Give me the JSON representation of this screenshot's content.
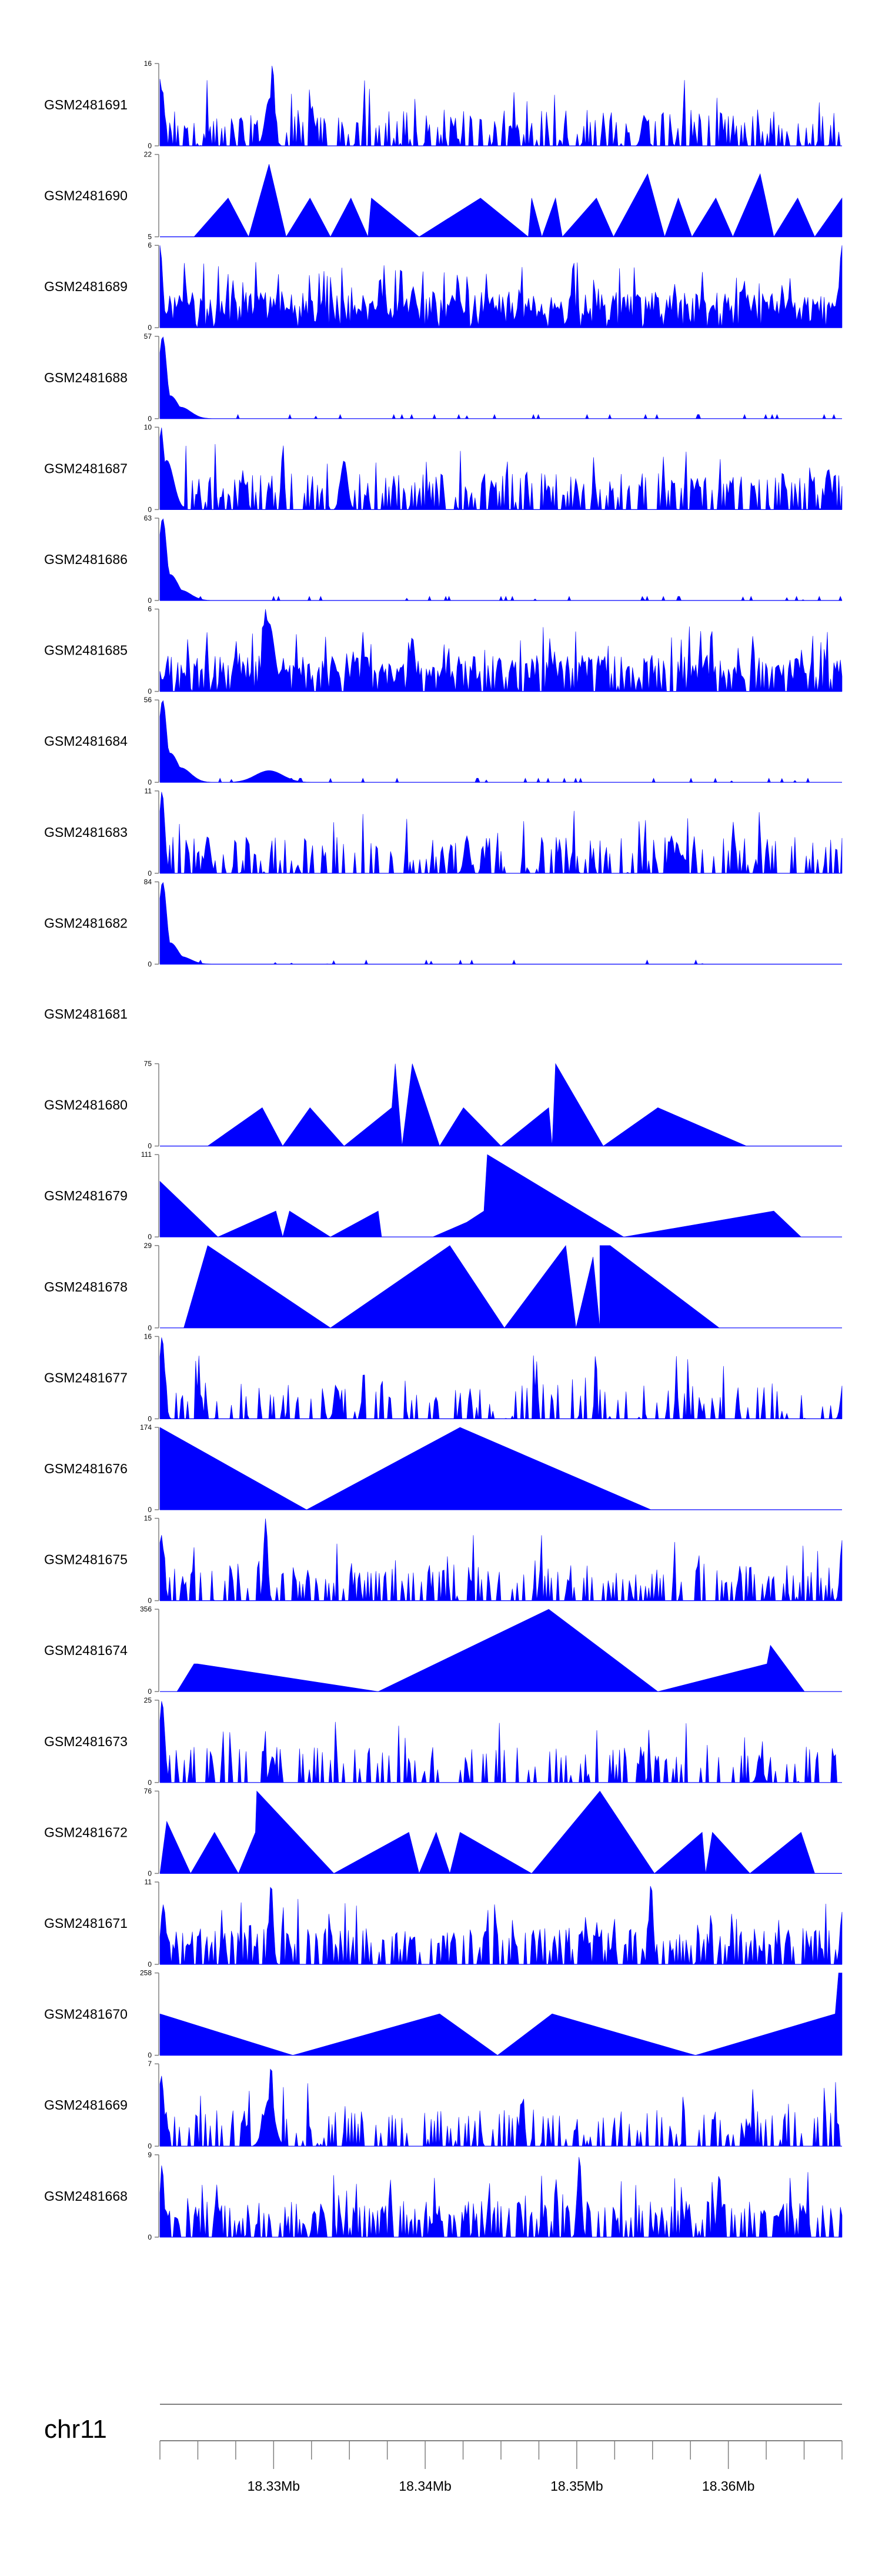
{
  "chart_data": {
    "type": "area",
    "title": "",
    "chromosome": "chr11",
    "xlim": [
      18.3225,
      18.3675
    ],
    "genome_ticks": [
      18.33,
      18.34,
      18.35,
      18.36
    ],
    "genome_tick_labels": [
      "18.33Mb",
      "18.34Mb",
      "18.35Mb",
      "18.36Mb"
    ],
    "fill_color": "#0000ff",
    "text_color": "#000000",
    "axis_color": "#808080",
    "tracks": [
      {
        "name": "GSM2481691",
        "ymin": 0,
        "ymax": 16,
        "kind": "dense",
        "seed": 11,
        "base": 0.1,
        "spike": 0.4,
        "peaks": [
          [
            0.0,
            13,
            0.004
          ],
          [
            0.165,
            16,
            0.003
          ],
          [
            0.16,
            9,
            0.006
          ],
          [
            0.71,
            6,
            0.004
          ]
        ]
      },
      {
        "name": "GSM2481690",
        "ymin": 5,
        "ymax": 22,
        "kind": "tri",
        "points": [
          [
            0.05,
            5
          ],
          [
            0.1,
            13
          ],
          [
            0.13,
            5
          ],
          [
            0.16,
            20
          ],
          [
            0.185,
            5
          ],
          [
            0.22,
            13
          ],
          [
            0.25,
            5
          ],
          [
            0.28,
            13
          ],
          [
            0.305,
            5
          ],
          [
            0.31,
            13
          ],
          [
            0.38,
            5
          ],
          [
            0.47,
            13
          ],
          [
            0.54,
            5
          ],
          [
            0.545,
            13
          ],
          [
            0.56,
            5
          ],
          [
            0.58,
            13
          ],
          [
            0.59,
            5
          ],
          [
            0.64,
            13
          ],
          [
            0.665,
            5
          ],
          [
            0.715,
            18
          ],
          [
            0.74,
            5
          ],
          [
            0.76,
            13
          ],
          [
            0.78,
            5
          ],
          [
            0.815,
            13
          ],
          [
            0.84,
            5
          ],
          [
            0.88,
            18
          ],
          [
            0.9,
            5
          ],
          [
            0.935,
            13
          ],
          [
            0.96,
            5
          ],
          [
            1.0,
            13
          ]
        ]
      },
      {
        "name": "GSM2481689",
        "ymin": 0,
        "ymax": 6,
        "kind": "dense",
        "seed": 23,
        "base": 0.1,
        "spike": 0.85,
        "peaks": [
          [
            0.0,
            6,
            0.004
          ],
          [
            1.0,
            6,
            0.004
          ]
        ]
      },
      {
        "name": "GSM2481688",
        "ymin": 0,
        "ymax": 57,
        "kind": "decay",
        "seed": 34,
        "base": 0.05,
        "spike": 0.02,
        "peaks": [
          [
            0.004,
            57,
            0.006
          ],
          [
            0.015,
            16,
            0.012
          ],
          [
            0.03,
            8,
            0.015
          ]
        ]
      },
      {
        "name": "GSM2481687",
        "ymin": 0,
        "ymax": 10,
        "kind": "dense",
        "seed": 45,
        "base": 0.05,
        "spike": 0.45,
        "peaks": [
          [
            0.002,
            10,
            0.004
          ],
          [
            0.01,
            6,
            0.01
          ],
          [
            0.27,
            6,
            0.005
          ],
          [
            0.98,
            5,
            0.004
          ]
        ]
      },
      {
        "name": "GSM2481686",
        "ymin": 0,
        "ymax": 63,
        "kind": "decay",
        "seed": 56,
        "base": 0.04,
        "spike": 0.02,
        "peaks": [
          [
            0.004,
            63,
            0.006
          ],
          [
            0.015,
            20,
            0.012
          ],
          [
            0.03,
            8,
            0.015
          ]
        ]
      },
      {
        "name": "GSM2481685",
        "ymin": 0,
        "ymax": 6,
        "kind": "dense",
        "seed": 67,
        "base": 0.05,
        "spike": 0.75,
        "peaks": [
          [
            0.155,
            6,
            0.004
          ],
          [
            0.16,
            5,
            0.008
          ],
          [
            0.37,
            4,
            0.004
          ]
        ]
      },
      {
        "name": "GSM2481684",
        "ymin": 0,
        "ymax": 56,
        "kind": "decay",
        "seed": 78,
        "base": 0.03,
        "spike": 0.04,
        "peaks": [
          [
            0.004,
            56,
            0.006
          ],
          [
            0.015,
            20,
            0.012
          ],
          [
            0.03,
            10,
            0.015
          ],
          [
            0.16,
            8,
            0.02
          ]
        ]
      },
      {
        "name": "GSM2481683",
        "ymin": 0,
        "ymax": 11,
        "kind": "dense",
        "seed": 89,
        "base": 0.05,
        "spike": 0.4,
        "peaks": [
          [
            0.003,
            11,
            0.004
          ],
          [
            0.07,
            5,
            0.004
          ],
          [
            0.45,
            5,
            0.004
          ],
          [
            0.75,
            5,
            0.004
          ]
        ]
      },
      {
        "name": "GSM2481682",
        "ymin": 0,
        "ymax": 84,
        "kind": "decay",
        "seed": 90,
        "base": 0.03,
        "spike": 0.02,
        "peaks": [
          [
            0.004,
            84,
            0.006
          ],
          [
            0.015,
            22,
            0.012
          ],
          [
            0.03,
            8,
            0.015
          ]
        ]
      },
      {
        "name": "GSM2481681",
        "kind": "empty"
      },
      {
        "name": "GSM2481680",
        "ymin": 0,
        "ymax": 75,
        "kind": "tri",
        "points": [
          [
            0.07,
            0
          ],
          [
            0.15,
            35
          ],
          [
            0.18,
            0
          ],
          [
            0.22,
            35
          ],
          [
            0.27,
            0
          ],
          [
            0.34,
            35
          ],
          [
            0.345,
            75
          ],
          [
            0.355,
            0
          ],
          [
            0.37,
            75
          ],
          [
            0.41,
            0
          ],
          [
            0.445,
            35
          ],
          [
            0.5,
            0
          ],
          [
            0.57,
            35
          ],
          [
            0.575,
            0
          ],
          [
            0.58,
            75
          ],
          [
            0.65,
            0
          ],
          [
            0.73,
            35
          ],
          [
            0.86,
            0
          ]
        ]
      },
      {
        "name": "GSM2481679",
        "ymin": 0,
        "ymax": 111,
        "kind": "tri",
        "points": [
          [
            0.0,
            0
          ],
          [
            0.0,
            75
          ],
          [
            0.085,
            0
          ],
          [
            0.17,
            35
          ],
          [
            0.18,
            0
          ],
          [
            0.19,
            35
          ],
          [
            0.25,
            0
          ],
          [
            0.32,
            35
          ],
          [
            0.325,
            0
          ],
          [
            0.4,
            0
          ],
          [
            0.45,
            20
          ],
          [
            0.475,
            35
          ],
          [
            0.48,
            111
          ],
          [
            0.68,
            0
          ],
          [
            0.9,
            35
          ],
          [
            0.94,
            0
          ]
        ]
      },
      {
        "name": "GSM2481678",
        "ymin": 0,
        "ymax": 29,
        "kind": "tri",
        "points": [
          [
            0.035,
            0
          ],
          [
            0.07,
            29
          ],
          [
            0.25,
            0
          ],
          [
            0.425,
            29
          ],
          [
            0.505,
            0
          ],
          [
            0.595,
            29
          ],
          [
            0.61,
            0
          ],
          [
            0.635,
            25
          ],
          [
            0.645,
            0
          ],
          [
            0.645,
            29
          ],
          [
            0.66,
            29
          ],
          [
            0.82,
            0
          ]
        ]
      },
      {
        "name": "GSM2481677",
        "ymin": 0,
        "ymax": 16,
        "kind": "dense",
        "seed": 101,
        "base": 0.04,
        "spike": 0.25,
        "peaks": [
          [
            0.003,
            16,
            0.004
          ],
          [
            0.26,
            6,
            0.004
          ],
          [
            1.0,
            5,
            0.003
          ]
        ]
      },
      {
        "name": "GSM2481676",
        "ymin": 0,
        "ymax": 174,
        "kind": "tri",
        "points": [
          [
            0.0,
            0
          ],
          [
            0.0,
            174
          ],
          [
            0.215,
            0
          ],
          [
            0.44,
            174
          ],
          [
            0.72,
            0
          ]
        ]
      },
      {
        "name": "GSM2481675",
        "ymin": 0,
        "ymax": 15,
        "kind": "dense",
        "seed": 112,
        "base": 0.03,
        "spike": 0.4,
        "peaks": [
          [
            0.002,
            12,
            0.004
          ],
          [
            0.155,
            15,
            0.003
          ],
          [
            1.0,
            11,
            0.003
          ]
        ]
      },
      {
        "name": "GSM2481674",
        "ymin": 0,
        "ymax": 356,
        "kind": "tri",
        "points": [
          [
            0.025,
            0
          ],
          [
            0.05,
            120
          ],
          [
            0.055,
            120
          ],
          [
            0.32,
            0
          ],
          [
            0.57,
            356
          ],
          [
            0.73,
            0
          ],
          [
            0.89,
            120
          ],
          [
            0.895,
            200
          ],
          [
            0.945,
            0
          ]
        ]
      },
      {
        "name": "GSM2481673",
        "ymin": 0,
        "ymax": 25,
        "kind": "dense",
        "seed": 123,
        "base": 0.02,
        "spike": 0.25,
        "peaks": [
          [
            0.003,
            25,
            0.004
          ],
          [
            0.165,
            8,
            0.004
          ],
          [
            0.88,
            7,
            0.004
          ]
        ]
      },
      {
        "name": "GSM2481672",
        "ymin": 0,
        "ymax": 76,
        "kind": "tri",
        "points": [
          [
            0.0,
            0
          ],
          [
            0.01,
            48
          ],
          [
            0.045,
            0
          ],
          [
            0.08,
            38
          ],
          [
            0.115,
            0
          ],
          [
            0.14,
            38
          ],
          [
            0.142,
            76
          ],
          [
            0.255,
            0
          ],
          [
            0.365,
            38
          ],
          [
            0.38,
            0
          ],
          [
            0.405,
            38
          ],
          [
            0.425,
            0
          ],
          [
            0.44,
            38
          ],
          [
            0.545,
            0
          ],
          [
            0.645,
            76
          ],
          [
            0.725,
            0
          ],
          [
            0.795,
            38
          ],
          [
            0.8,
            0
          ],
          [
            0.81,
            38
          ],
          [
            0.865,
            0
          ],
          [
            0.94,
            38
          ],
          [
            0.96,
            0
          ]
        ]
      },
      {
        "name": "GSM2481671",
        "ymin": 0,
        "ymax": 11,
        "kind": "dense",
        "seed": 134,
        "base": 0.02,
        "spike": 0.55,
        "peaks": [
          [
            0.005,
            8,
            0.004
          ],
          [
            0.163,
            11,
            0.003
          ],
          [
            0.72,
            11,
            0.003
          ],
          [
            1.0,
            7,
            0.003
          ]
        ]
      },
      {
        "name": "GSM2481670",
        "ymin": 0,
        "ymax": 258,
        "kind": "tri",
        "points": [
          [
            0.0,
            0
          ],
          [
            0.0,
            130
          ],
          [
            0.195,
            0
          ],
          [
            0.41,
            130
          ],
          [
            0.495,
            0
          ],
          [
            0.575,
            130
          ],
          [
            0.785,
            0
          ],
          [
            0.99,
            130
          ],
          [
            0.995,
            258
          ],
          [
            1.0,
            258
          ],
          [
            1.0,
            0
          ]
        ]
      },
      {
        "name": "GSM2481669",
        "ymin": 0,
        "ymax": 7,
        "kind": "dense",
        "seed": 145,
        "base": 0.05,
        "spike": 0.3,
        "peaks": [
          [
            0.002,
            6,
            0.004
          ],
          [
            0.163,
            7,
            0.003
          ],
          [
            0.16,
            4,
            0.008
          ]
        ]
      },
      {
        "name": "GSM2481668",
        "ymin": 0,
        "ymax": 9,
        "kind": "dense",
        "seed": 156,
        "base": 0.02,
        "spike": 0.55,
        "peaks": [
          [
            0.615,
            9,
            0.003
          ],
          [
            0.82,
            7,
            0.003
          ],
          [
            0.003,
            8,
            0.003
          ]
        ]
      }
    ]
  }
}
